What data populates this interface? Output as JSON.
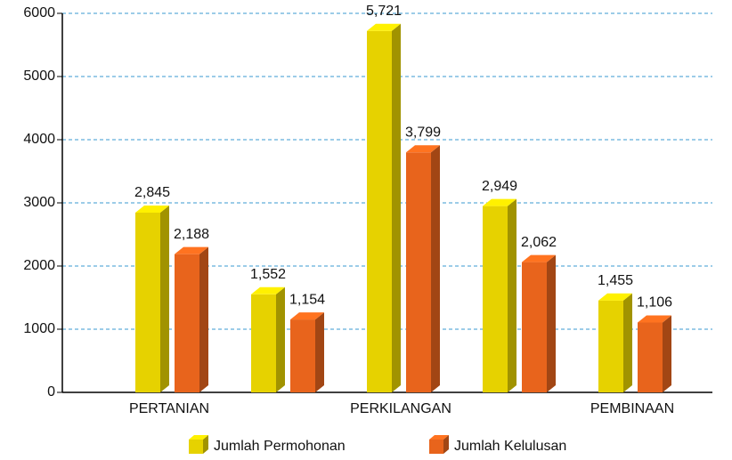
{
  "chart_data": {
    "type": "bar3d",
    "categories": [
      "PERTANIAN",
      null,
      "PERKILANGAN",
      null,
      "PEMBINAAN"
    ],
    "series": [
      {
        "name": "Jumlah Permohonan",
        "color": "#e6d200",
        "values": [
          2845,
          1552,
          5721,
          2949,
          1455
        ],
        "value_labels": [
          "2,845",
          "1,552",
          "5,721",
          "2,949",
          "1,455"
        ]
      },
      {
        "name": "Jumlah Kelulusan",
        "color": "#e8641c",
        "values": [
          2188,
          1154,
          3799,
          2062,
          1106
        ],
        "value_labels": [
          "2,188",
          "1,154",
          "3,799",
          "2,062",
          "1,106"
        ]
      }
    ],
    "ylim": [
      0,
      6000
    ],
    "yticks": [
      0,
      1000,
      2000,
      3000,
      4000,
      5000,
      6000
    ],
    "grid": true
  }
}
